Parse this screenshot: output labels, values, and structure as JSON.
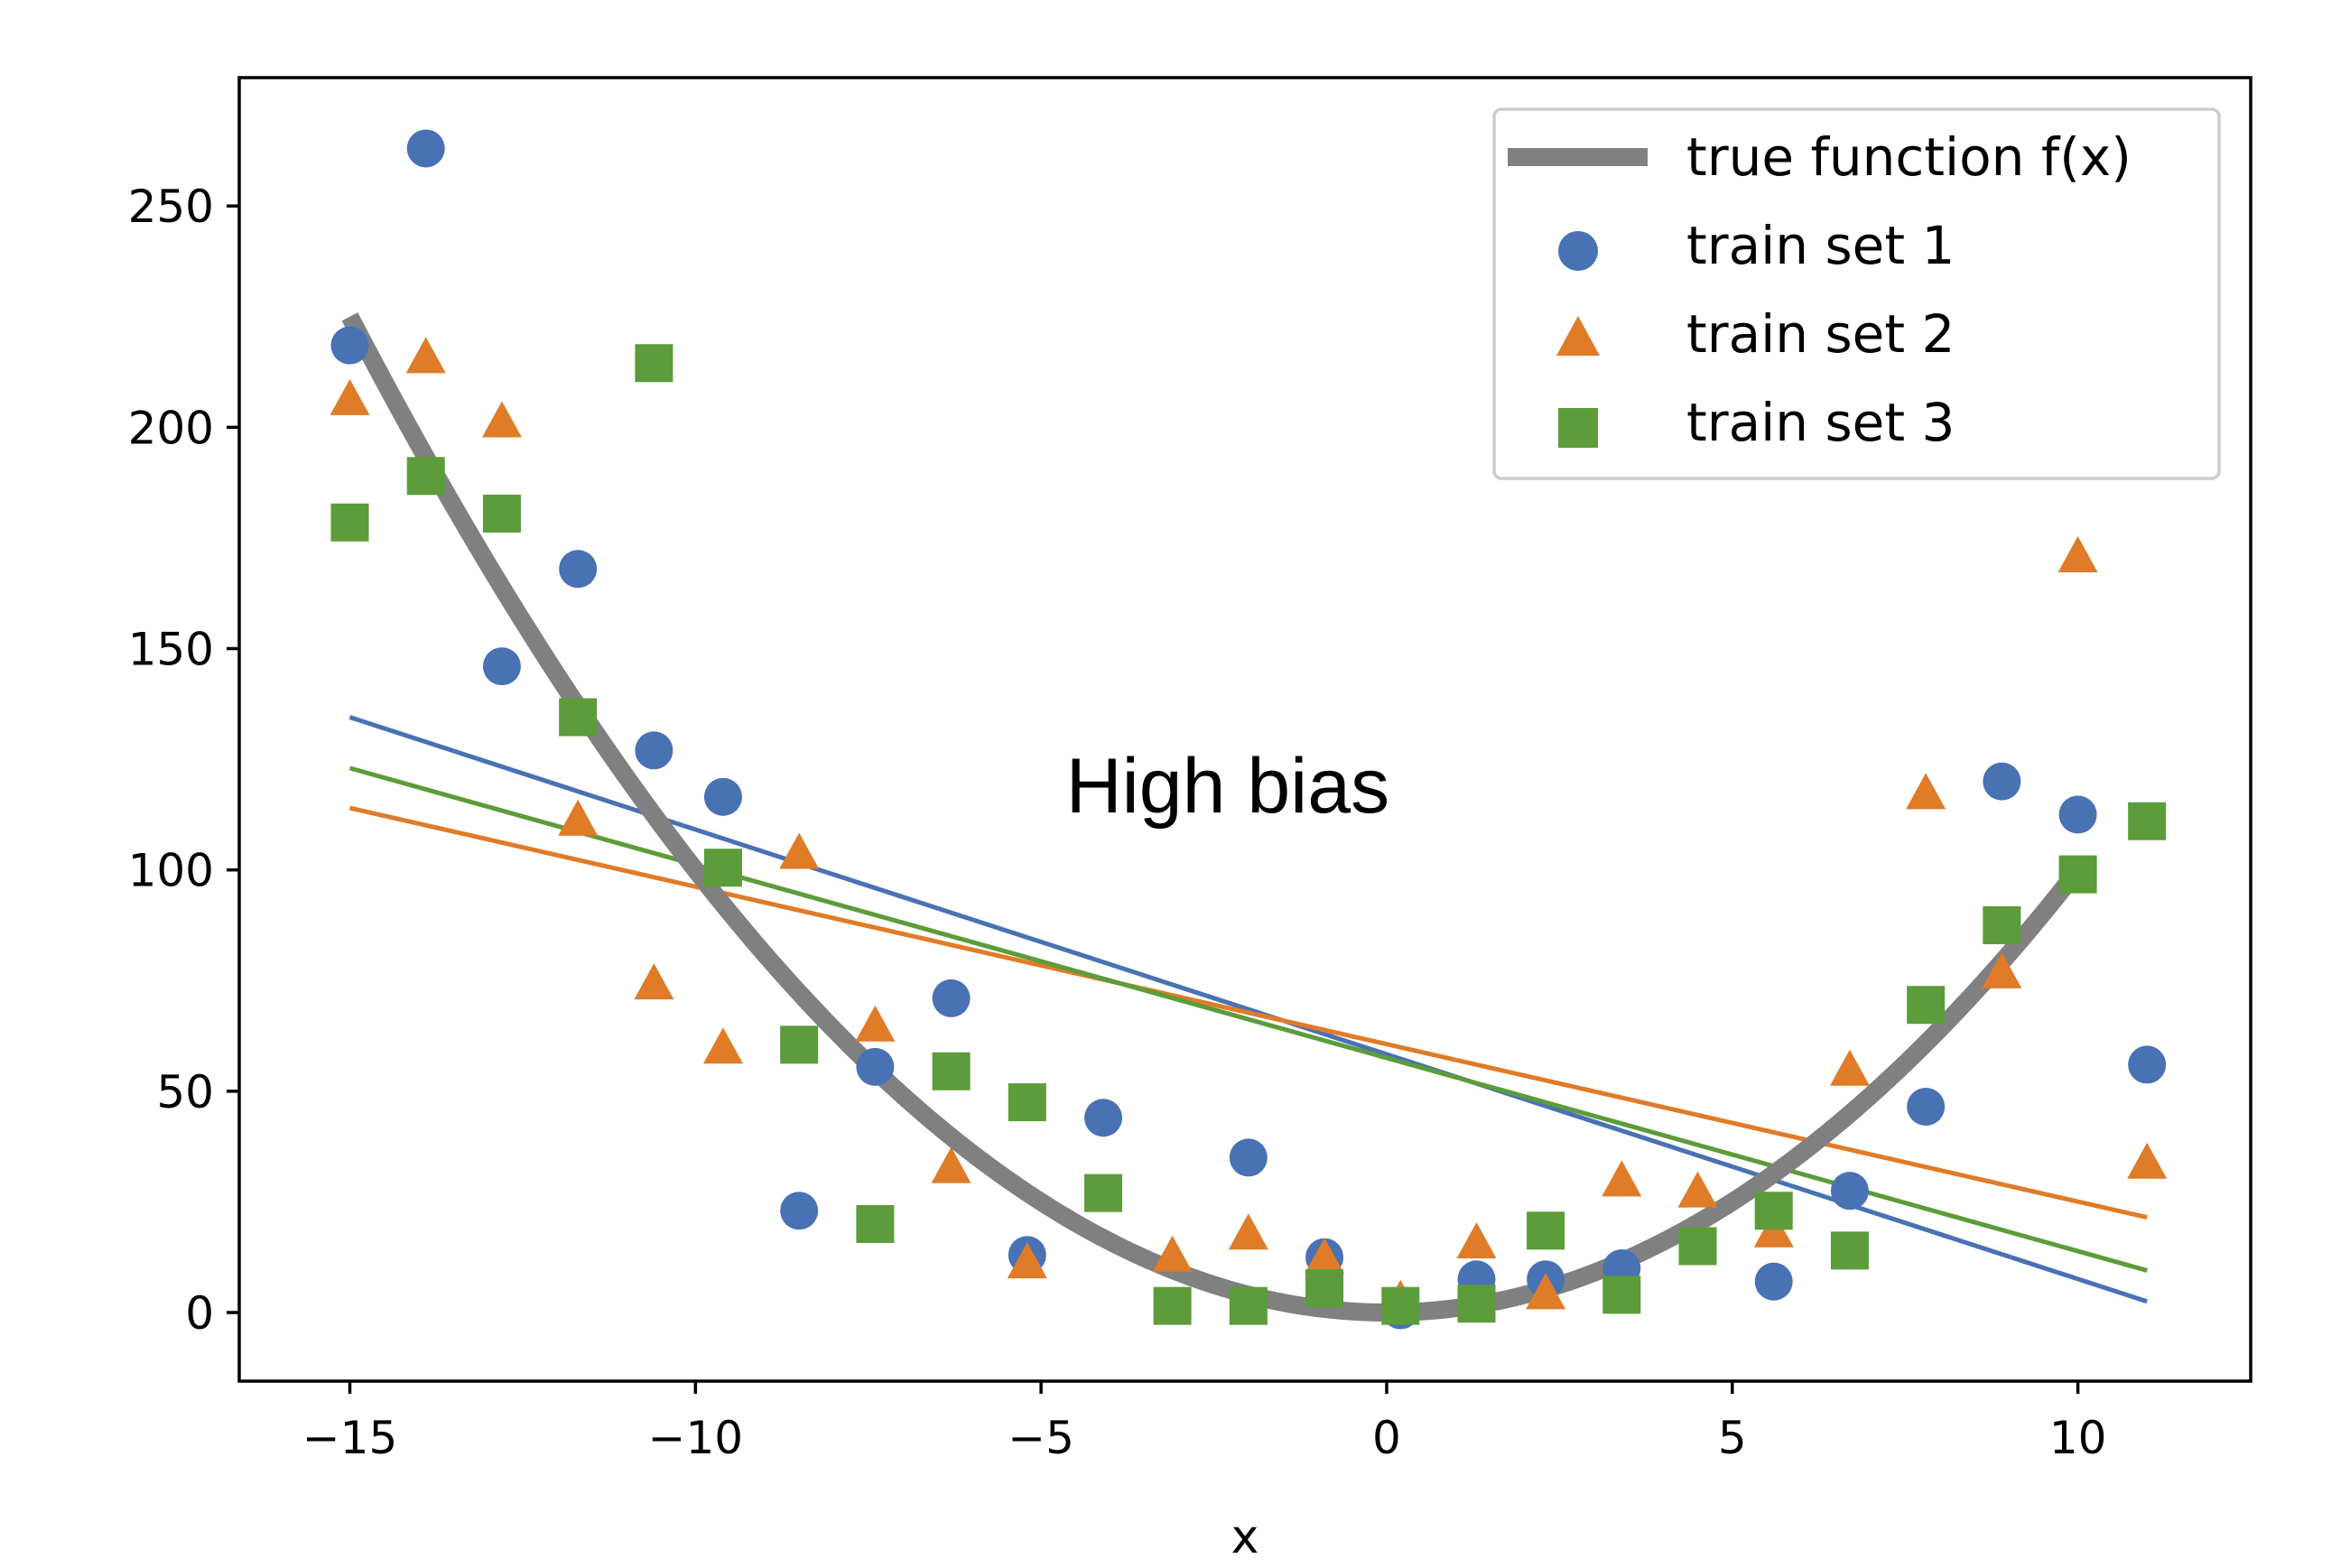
{
  "chart_data": {
    "type": "scatter",
    "title": "",
    "xlabel": "x",
    "ylabel": "",
    "xlim": [
      -16.6,
      12.5
    ],
    "ylim": [
      -15.5,
      279
    ],
    "x_ticks": [
      -15,
      -10,
      -5,
      0,
      5,
      10
    ],
    "x_tick_labels": [
      "−15",
      "−10",
      "−5",
      "0",
      "5",
      "10"
    ],
    "y_ticks": [
      0,
      50,
      100,
      150,
      200,
      250
    ],
    "y_tick_labels": [
      "0",
      "50",
      "100",
      "150",
      "200",
      "250"
    ],
    "grid": false,
    "legend_position": "top-right",
    "annotation": {
      "text": "High bias",
      "x": -2.3,
      "y": 113
    },
    "true_function": {
      "name": "true function f(x)",
      "color": "#808080",
      "formula": "x^2",
      "x_range": [
        -15,
        10
      ]
    },
    "series": [
      {
        "name": "train set 1",
        "marker": "circle",
        "color": "#4872b3",
        "points": [
          [
            -15,
            218.5
          ],
          [
            -13.9,
            263
          ],
          [
            -12.8,
            146
          ],
          [
            -11.7,
            168
          ],
          [
            -10.6,
            127
          ],
          [
            -9.6,
            116.5
          ],
          [
            -8.5,
            23
          ],
          [
            -7.4,
            55.5
          ],
          [
            -6.3,
            71
          ],
          [
            -5.2,
            13
          ],
          [
            -4.1,
            44
          ],
          [
            -2,
            35
          ],
          [
            -0.9,
            12.5
          ],
          [
            0.2,
            0.5
          ],
          [
            1.3,
            7.5
          ],
          [
            2.3,
            7.5
          ],
          [
            3.4,
            10
          ],
          [
            5.6,
            7
          ],
          [
            6.7,
            27.5
          ],
          [
            7.8,
            46.5
          ],
          [
            8.9,
            120
          ],
          [
            10,
            112.5
          ],
          [
            11,
            56
          ]
        ],
        "fit_line": [
          [
            -15,
            134.5
          ],
          [
            11,
            2.5
          ]
        ]
      },
      {
        "name": "train set 2",
        "marker": "triangle",
        "color": "#e07b27",
        "points": [
          [
            -15,
            206
          ],
          [
            -13.9,
            215.5
          ],
          [
            -12.8,
            201
          ],
          [
            -11.7,
            111
          ],
          [
            -10.6,
            74
          ],
          [
            -9.6,
            59.5
          ],
          [
            -8.5,
            103.5
          ],
          [
            -7.4,
            64.5
          ],
          [
            -6.3,
            32.5
          ],
          [
            -5.2,
            11
          ],
          [
            -3.1,
            12.5
          ],
          [
            -2,
            17.5
          ],
          [
            -0.9,
            12
          ],
          [
            0.2,
            2.5
          ],
          [
            1.3,
            15.5
          ],
          [
            2.3,
            4
          ],
          [
            3.4,
            29.5
          ],
          [
            4.5,
            27
          ],
          [
            5.6,
            18
          ],
          [
            6.7,
            54.5
          ],
          [
            7.8,
            117
          ],
          [
            8.9,
            76.5
          ],
          [
            10,
            170.5
          ],
          [
            11,
            33.5
          ]
        ],
        "fit_line": [
          [
            -15,
            114
          ],
          [
            11,
            21.5
          ]
        ]
      },
      {
        "name": "train set 3",
        "marker": "square",
        "color": "#5c9c3a",
        "points": [
          [
            -15,
            178.5
          ],
          [
            -13.9,
            189
          ],
          [
            -12.8,
            180.5
          ],
          [
            -11.7,
            134.5
          ],
          [
            -10.6,
            214.5
          ],
          [
            -9.6,
            100.5
          ],
          [
            -8.5,
            60.5
          ],
          [
            -7.4,
            20
          ],
          [
            -6.3,
            54.5
          ],
          [
            -5.2,
            47.5
          ],
          [
            -4.1,
            27
          ],
          [
            -3.1,
            1.5
          ],
          [
            -2,
            1.5
          ],
          [
            -0.9,
            5.5
          ],
          [
            0.2,
            1.5
          ],
          [
            1.3,
            2
          ],
          [
            2.3,
            18.5
          ],
          [
            3.4,
            4
          ],
          [
            4.5,
            15
          ],
          [
            5.6,
            23
          ],
          [
            6.7,
            14
          ],
          [
            7.8,
            69.5
          ],
          [
            8.9,
            87.5
          ],
          [
            10,
            99
          ],
          [
            11,
            111
          ]
        ],
        "fit_line": [
          [
            -15,
            123
          ],
          [
            11,
            9.5
          ]
        ]
      }
    ]
  }
}
